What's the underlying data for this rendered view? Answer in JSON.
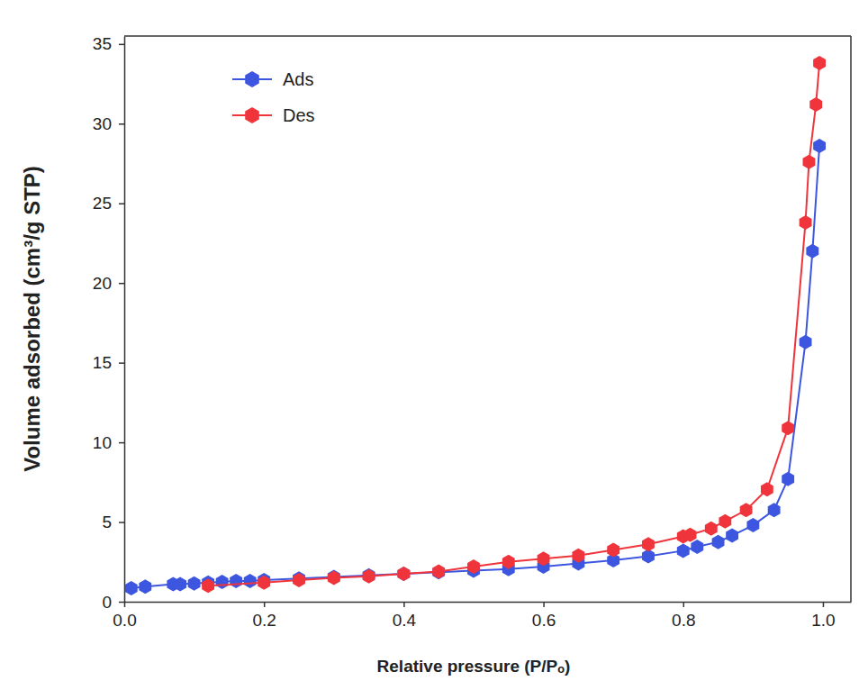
{
  "chart_data": {
    "type": "line",
    "x_label": "Relative pressure (P/Pₒ)",
    "y_label": "Volume adsorbed (cm³/g STP)",
    "xlim": [
      0,
      1.04
    ],
    "xticks": [
      {
        "value": 0,
        "label": "0.0"
      },
      0.2,
      0.4,
      0.6,
      0.8,
      {
        "value": 1,
        "label": "1.0"
      }
    ],
    "ylim": [
      0,
      35.5
    ],
    "yticks": [
      0,
      5,
      10,
      15,
      20,
      25,
      30,
      35
    ],
    "legend": "top-left",
    "marker": "hexagon",
    "series": [
      {
        "name": "Ads",
        "color": "#3d56e0",
        "x": [
          0.01,
          0.03,
          0.07,
          0.08,
          0.1,
          0.12,
          0.14,
          0.16,
          0.18,
          0.2,
          0.25,
          0.3,
          0.35,
          0.4,
          0.45,
          0.5,
          0.55,
          0.6,
          0.65,
          0.7,
          0.75,
          0.8,
          0.82,
          0.85,
          0.87,
          0.9,
          0.93,
          0.95,
          0.975,
          0.985,
          0.995
        ],
        "values": [
          0.85,
          0.95,
          1.1,
          1.1,
          1.15,
          1.2,
          1.25,
          1.3,
          1.3,
          1.35,
          1.45,
          1.55,
          1.65,
          1.75,
          1.85,
          1.95,
          2.05,
          2.2,
          2.4,
          2.6,
          2.85,
          3.2,
          3.45,
          3.75,
          4.15,
          4.8,
          5.75,
          7.7,
          16.3,
          22.0,
          28.6
        ]
      },
      {
        "name": "Des",
        "color": "#f0343c",
        "x": [
          0.12,
          0.2,
          0.25,
          0.3,
          0.35,
          0.4,
          0.45,
          0.5,
          0.55,
          0.6,
          0.65,
          0.7,
          0.75,
          0.8,
          0.81,
          0.84,
          0.86,
          0.89,
          0.92,
          0.95,
          0.975,
          0.98,
          0.99,
          0.995
        ],
        "values": [
          1.0,
          1.2,
          1.35,
          1.5,
          1.6,
          1.75,
          1.9,
          2.2,
          2.5,
          2.7,
          2.9,
          3.25,
          3.6,
          4.1,
          4.2,
          4.6,
          5.05,
          5.75,
          7.05,
          10.9,
          23.8,
          27.6,
          31.2,
          33.8
        ]
      }
    ]
  }
}
